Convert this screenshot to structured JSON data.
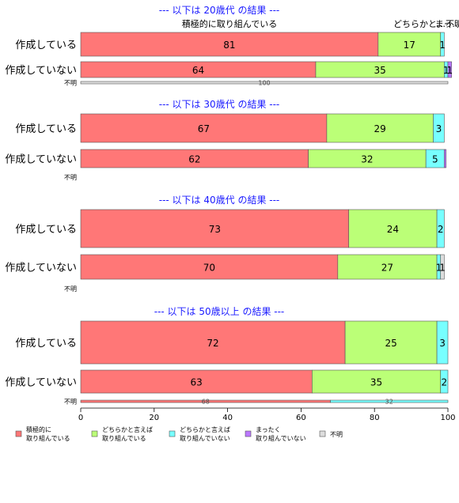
{
  "chart_data": {
    "type": "bar",
    "orientation": "horizontal",
    "stacked": true,
    "xlim": [
      0,
      100
    ],
    "x_ticks": [
      "0",
      "20",
      "40",
      "60",
      "80",
      "100"
    ],
    "top_labels": [
      "積極的に取り組んでいる",
      "どちらかと…",
      "まっ…",
      "不明"
    ],
    "series": [
      {
        "name": "積極的に\n取り組んでいる",
        "color": "#FF7777"
      },
      {
        "name": "どちらかと言えば\n取り組んでいる",
        "color": "#BBFF77"
      },
      {
        "name": "どちらかと言えば\n取り組んでいない",
        "color": "#77FFFF"
      },
      {
        "name": "まったく\n取り組んでいない",
        "color": "#BB77FF"
      },
      {
        "name": "不明",
        "color": "#DDDDDD"
      }
    ],
    "groups": [
      {
        "title": "--- 以下は 20歳代 の結果 ---",
        "rows": [
          {
            "label": "作成している",
            "values": [
              81,
              17,
              1,
              0,
              0
            ],
            "labels": [
              "81",
              "17",
              "1",
              "",
              ""
            ]
          },
          {
            "label": "作成していない",
            "values": [
              64,
              35,
              1,
              1,
              0
            ],
            "labels": [
              "64",
              "35",
              "1",
              "1",
              ""
            ]
          },
          {
            "label": "不明",
            "small": true,
            "values": [
              0,
              0,
              0,
              0,
              100
            ],
            "labels": [
              "",
              "",
              "",
              "",
              "100"
            ]
          }
        ]
      },
      {
        "title": "--- 以下は 30歳代 の結果 ---",
        "rows": [
          {
            "label": "作成している",
            "values": [
              67,
              29,
              3,
              0,
              0
            ],
            "labels": [
              "67",
              "29",
              "3",
              "",
              ""
            ]
          },
          {
            "label": "作成していない",
            "values": [
              62,
              32,
              5,
              0.5,
              0
            ],
            "labels": [
              "62",
              "32",
              "5",
              "",
              ""
            ]
          },
          {
            "label": "不明",
            "small": true,
            "values": [
              0,
              0,
              0,
              0,
              0
            ],
            "labels": [
              "",
              "",
              "",
              "",
              ""
            ]
          }
        ]
      },
      {
        "title": "--- 以下は 40歳代 の結果 ---",
        "rows": [
          {
            "label": "作成している",
            "values": [
              73,
              24,
              2,
              0,
              0
            ],
            "labels": [
              "73",
              "24",
              "2",
              "",
              ""
            ]
          },
          {
            "label": "作成していない",
            "values": [
              70,
              27,
              1,
              0,
              1
            ],
            "labels": [
              "70",
              "27",
              "1",
              "",
              "1"
            ]
          },
          {
            "label": "不明",
            "small": true,
            "values": [
              0,
              0,
              0,
              0,
              0
            ],
            "labels": [
              "",
              "",
              "",
              "",
              ""
            ]
          }
        ]
      },
      {
        "title": "--- 以下は 50歳以上 の結果 ---",
        "rows": [
          {
            "label": "作成している",
            "values": [
              72,
              25,
              3,
              0,
              0
            ],
            "labels": [
              "72",
              "25",
              "3",
              "",
              ""
            ]
          },
          {
            "label": "作成していない",
            "values": [
              63,
              35,
              2,
              0,
              0
            ],
            "labels": [
              "63",
              "35",
              "2",
              "",
              ""
            ]
          },
          {
            "label": "不明",
            "small": true,
            "values": [
              68,
              0,
              32,
              0,
              0
            ],
            "labels": [
              "68",
              "",
              "32",
              "",
              ""
            ]
          }
        ]
      }
    ]
  }
}
